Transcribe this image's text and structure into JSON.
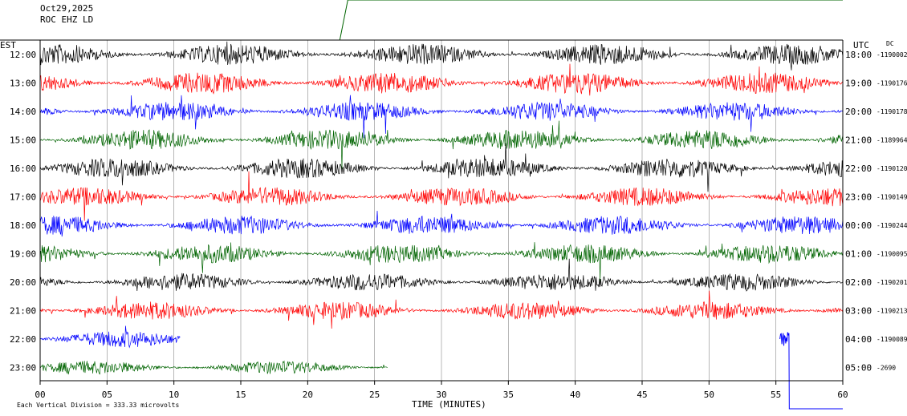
{
  "header": {
    "date": "Oct29,2025",
    "station": "ROC EHZ LD"
  },
  "chart_data": {
    "type": "line",
    "title": "Oct29,2025",
    "subtitle": "ROC EHZ LD",
    "xlabel": "TIME (MINUTES)",
    "xlim": [
      0,
      60
    ],
    "x_ticks": [
      "00",
      "05",
      "10",
      "15",
      "20",
      "25",
      "30",
      "35",
      "40",
      "45",
      "50",
      "55",
      "60"
    ],
    "left_axis_title": "EST",
    "right_axis_title": "UTC",
    "dc_title": "DC",
    "footer": "Each Vertical Division = 333.33 microvolts",
    "line_colors": [
      "#000000",
      "#ff0000",
      "#0000ff",
      "#006400"
    ],
    "rows": [
      {
        "est": "12:00",
        "utc": "18:00",
        "dc": "-1190002",
        "color": "#000000",
        "amp": 0.95,
        "end": 60
      },
      {
        "est": "13:00",
        "utc": "19:00",
        "dc": "-1190176",
        "color": "#ff0000",
        "amp": 0.95,
        "end": 60
      },
      {
        "est": "14:00",
        "utc": "20:00",
        "dc": "-1190178",
        "color": "#0000ff",
        "amp": 0.85,
        "end": 60
      },
      {
        "est": "15:00",
        "utc": "21:00",
        "dc": "-1189964",
        "color": "#006400",
        "amp": 0.9,
        "end": 60
      },
      {
        "est": "16:00",
        "utc": "22:00",
        "dc": "-1190120",
        "color": "#000000",
        "amp": 0.9,
        "end": 60
      },
      {
        "est": "17:00",
        "utc": "23:00",
        "dc": "-1190149",
        "color": "#ff0000",
        "amp": 0.85,
        "end": 60
      },
      {
        "est": "18:00",
        "utc": "00:00",
        "dc": "-1190244",
        "color": "#0000ff",
        "amp": 0.85,
        "end": 60
      },
      {
        "est": "19:00",
        "utc": "01:00",
        "dc": "-1190095",
        "color": "#006400",
        "amp": 0.85,
        "end": 60
      },
      {
        "est": "20:00",
        "utc": "02:00",
        "dc": "-1190201",
        "color": "#000000",
        "amp": 0.8,
        "end": 60
      },
      {
        "est": "21:00",
        "utc": "03:00",
        "dc": "-1190213",
        "color": "#ff0000",
        "amp": 0.8,
        "end": 60
      },
      {
        "est": "22:00",
        "utc": "04:00",
        "dc": "-1190089",
        "color": "#0000ff",
        "amp": 0.75,
        "end": 10.5
      },
      {
        "est": "23:00",
        "utc": "05:00",
        "dc": "-2690",
        "color": "#006400",
        "amp": 0.6,
        "end": 26
      }
    ]
  }
}
